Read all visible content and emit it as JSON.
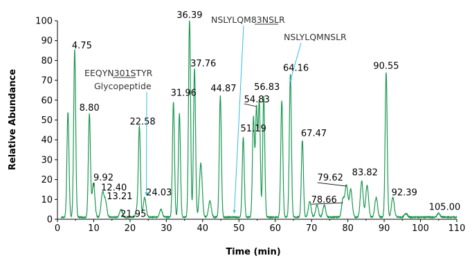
{
  "chart_data": {
    "type": "line",
    "title": "",
    "xlabel": "Time (min)",
    "ylabel": "Relative Abundance",
    "xlim": [
      0,
      110
    ],
    "ylim": [
      0,
      100
    ],
    "x_ticks": [
      0,
      10,
      20,
      30,
      40,
      50,
      60,
      70,
      80,
      90,
      100,
      110
    ],
    "y_ticks": [
      0,
      10,
      20,
      30,
      40,
      50,
      60,
      70,
      80,
      90,
      100
    ],
    "grid": false,
    "legend": "none",
    "line_color": "#1a9850",
    "peaks": [
      {
        "x": 2.9,
        "y": 53
      },
      {
        "x": 4.75,
        "y": 84,
        "label": "4.75"
      },
      {
        "x": 8.8,
        "y": 52,
        "label": "8.80"
      },
      {
        "x": 9.92,
        "y": 17,
        "label": "9.92"
      },
      {
        "x": 12.4,
        "y": 12,
        "label": "12.40"
      },
      {
        "x": 13.21,
        "y": 8,
        "label": "13.21"
      },
      {
        "x": 17.5,
        "y": 4
      },
      {
        "x": 21.95,
        "y": 4,
        "label": "21.95"
      },
      {
        "x": 22.58,
        "y": 45,
        "label": "22.58"
      },
      {
        "x": 24.03,
        "y": 10,
        "label": "24.03"
      },
      {
        "x": 28.5,
        "y": 4
      },
      {
        "x": 31.96,
        "y": 58,
        "label": "31.96"
      },
      {
        "x": 33.6,
        "y": 52
      },
      {
        "x": 36.39,
        "y": 100,
        "label": "36.39"
      },
      {
        "x": 37.76,
        "y": 75,
        "label": "37.76"
      },
      {
        "x": 39.5,
        "y": 27
      },
      {
        "x": 42.0,
        "y": 8
      },
      {
        "x": 44.87,
        "y": 61,
        "label": "44.87"
      },
      {
        "x": 51.19,
        "y": 40,
        "label": "51.19"
      },
      {
        "x": 54.0,
        "y": 50
      },
      {
        "x": 54.83,
        "y": 54,
        "label": "54.83"
      },
      {
        "x": 55.6,
        "y": 58
      },
      {
        "x": 56.83,
        "y": 61,
        "label": "56.83"
      },
      {
        "x": 61.8,
        "y": 59
      },
      {
        "x": 64.16,
        "y": 72,
        "label": "64.16"
      },
      {
        "x": 67.47,
        "y": 39,
        "label": "67.47"
      },
      {
        "x": 69.5,
        "y": 8
      },
      {
        "x": 71.5,
        "y": 6
      },
      {
        "x": 73.5,
        "y": 6
      },
      {
        "x": 78.66,
        "y": 9,
        "label": "78.66"
      },
      {
        "x": 79.62,
        "y": 16,
        "label": "79.62"
      },
      {
        "x": 80.8,
        "y": 14
      },
      {
        "x": 83.82,
        "y": 18,
        "label": "83.82"
      },
      {
        "x": 85.3,
        "y": 16
      },
      {
        "x": 87.8,
        "y": 10
      },
      {
        "x": 90.55,
        "y": 73,
        "label": "90.55"
      },
      {
        "x": 92.39,
        "y": 10,
        "label": "92.39"
      },
      {
        "x": 96.0,
        "y": 2
      },
      {
        "x": 105.0,
        "y": 2,
        "label": "105.00"
      }
    ],
    "annotations": [
      {
        "id": "glyco",
        "lines": [
          "EEQYN301STYR",
          "Glycopeptide"
        ],
        "underline": "N301",
        "target_x": 24.5,
        "target_y": 12
      },
      {
        "id": "m83",
        "text": "NSLYLQM83NSLR",
        "underline": "M83",
        "target_x": 48.7,
        "target_y": 3
      },
      {
        "id": "mnslr",
        "text": "NSLYLQMNSLR",
        "target_x": 63.5,
        "target_y": 72
      }
    ]
  }
}
